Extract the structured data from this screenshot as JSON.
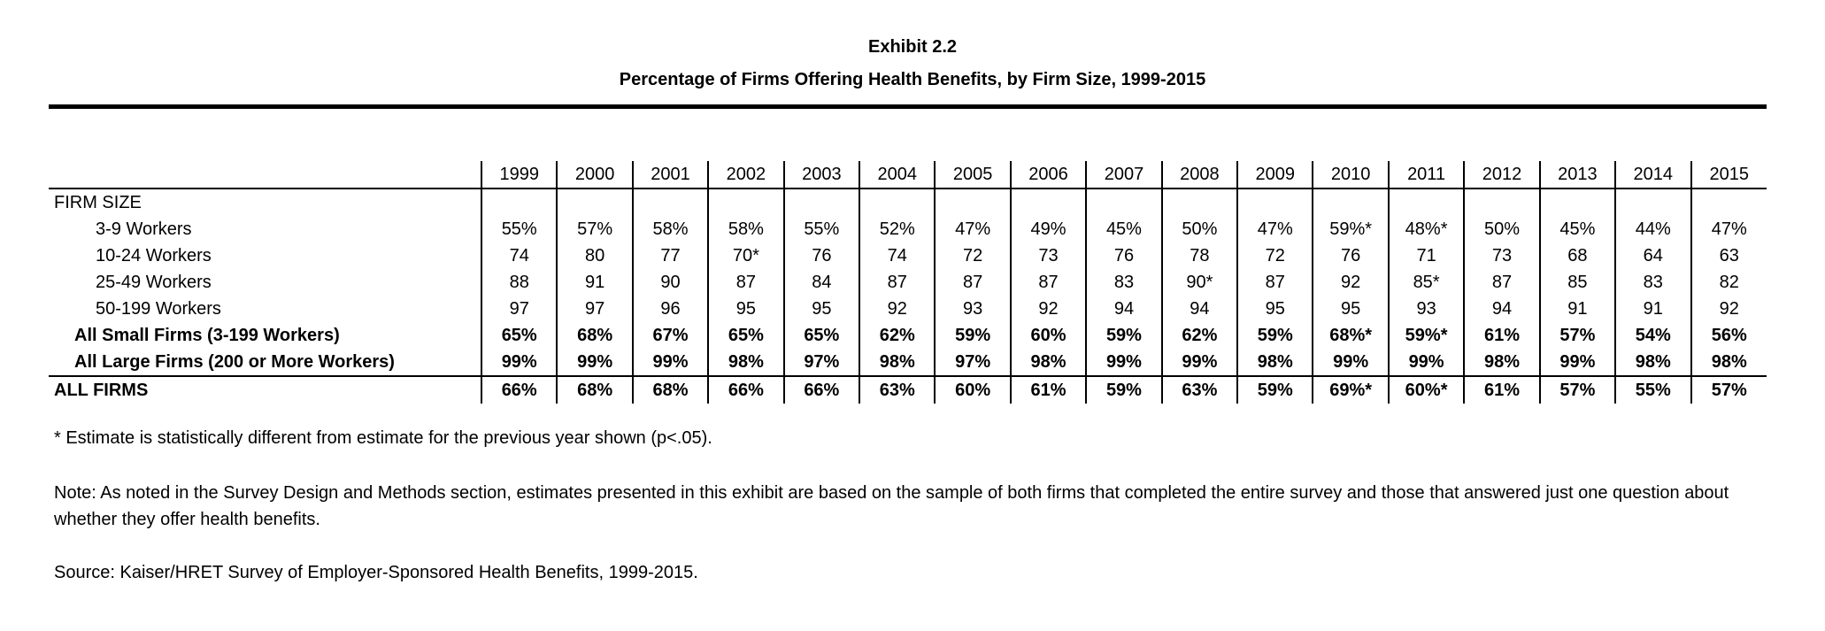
{
  "exhibit": "Exhibit 2.2",
  "title": "Percentage of Firms Offering Health Benefits, by Firm Size, 1999-2015",
  "chart_data": {
    "type": "table",
    "title": "Percentage of Firms Offering Health Benefits, by Firm Size, 1999-2015",
    "columns": [
      "1999",
      "2000",
      "2001",
      "2002",
      "2003",
      "2004",
      "2005",
      "2006",
      "2007",
      "2008",
      "2009",
      "2010",
      "2011",
      "2012",
      "2013",
      "2014",
      "2015"
    ],
    "section_label": "FIRM SIZE",
    "rows": [
      {
        "label": "3-9 Workers",
        "style": "sub",
        "values": [
          "55%",
          "57%",
          "58%",
          "58%",
          "55%",
          "52%",
          "47%",
          "49%",
          "45%",
          "50%",
          "47%",
          "59%*",
          "48%*",
          "50%",
          "45%",
          "44%",
          "47%"
        ]
      },
      {
        "label": "10-24 Workers",
        "style": "sub",
        "values": [
          "74",
          "80",
          "77",
          "70*",
          "76",
          "74",
          "72",
          "73",
          "76",
          "78",
          "72",
          "76",
          "71",
          "73",
          "68",
          "64",
          "63"
        ]
      },
      {
        "label": "25-49 Workers",
        "style": "sub",
        "values": [
          "88",
          "91",
          "90",
          "87",
          "84",
          "87",
          "87",
          "87",
          "83",
          "90*",
          "87",
          "92",
          "85*",
          "87",
          "85",
          "83",
          "82"
        ]
      },
      {
        "label": "50-199 Workers",
        "style": "sub",
        "values": [
          "97",
          "97",
          "96",
          "95",
          "95",
          "92",
          "93",
          "92",
          "94",
          "94",
          "95",
          "95",
          "93",
          "94",
          "91",
          "91",
          "92"
        ]
      },
      {
        "label": "All Small Firms (3-199 Workers)",
        "style": "bold",
        "values": [
          "65%",
          "68%",
          "67%",
          "65%",
          "65%",
          "62%",
          "59%",
          "60%",
          "59%",
          "62%",
          "59%",
          "68%*",
          "59%*",
          "61%",
          "57%",
          "54%",
          "56%"
        ]
      },
      {
        "label": "All Large Firms (200 or More Workers)",
        "style": "bold",
        "values": [
          "99%",
          "99%",
          "99%",
          "98%",
          "97%",
          "98%",
          "97%",
          "98%",
          "99%",
          "99%",
          "98%",
          "99%",
          "99%",
          "98%",
          "99%",
          "98%",
          "98%"
        ]
      },
      {
        "label": "ALL FIRMS",
        "style": "all",
        "values": [
          "66%",
          "68%",
          "68%",
          "66%",
          "66%",
          "63%",
          "60%",
          "61%",
          "59%",
          "63%",
          "59%",
          "69%*",
          "60%*",
          "61%",
          "57%",
          "55%",
          "57%"
        ]
      }
    ]
  },
  "footnote": "* Estimate is statistically different from estimate for the previous year shown (p<.05).",
  "note": "Note:  As noted in the Survey Design and Methods section, estimates presented in this exhibit are based on the sample of both firms that completed the entire survey and those that answered just one question about whether they offer health benefits.",
  "source": "Source: Kaiser/HRET Survey of Employer-Sponsored Health Benefits, 1999-2015."
}
